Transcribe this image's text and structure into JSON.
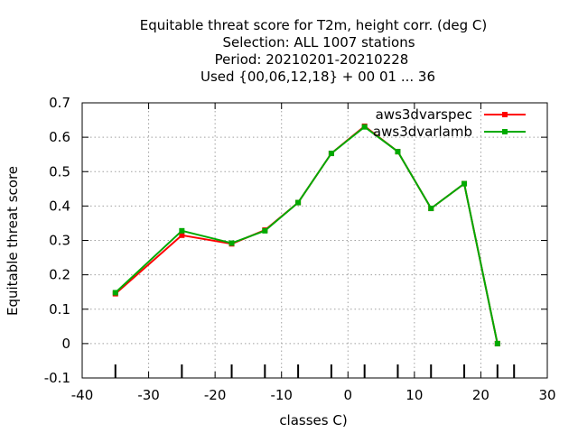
{
  "chart_data": {
    "type": "line",
    "title_lines": [
      "Equitable threat score  for T2m, height corr. (deg C)",
      "Selection: ALL   1007 stations",
      "Period: 20210201-20210228",
      "Used {00,06,12,18} + 00 01 ... 36"
    ],
    "xlabel": "classes C)",
    "ylabel": "Equitable threat score",
    "xlim": [
      -40,
      30
    ],
    "ylim": [
      -0.1,
      0.7
    ],
    "xticks": [
      -40,
      -30,
      -20,
      -10,
      0,
      10,
      20,
      30
    ],
    "yticks": [
      -0.1,
      0,
      0.1,
      0.2,
      0.3,
      0.4,
      0.5,
      0.6,
      0.7
    ],
    "xtick_labels": [
      "-40",
      "-30",
      "-20",
      "-10",
      "0",
      "10",
      "20",
      "30"
    ],
    "ytick_labels": [
      "-0.1",
      "0",
      "0.1",
      "0.2",
      "0.3",
      "0.4",
      "0.5",
      "0.6",
      "0.7"
    ],
    "class_marks": [
      -35,
      -25,
      -17.5,
      -12.5,
      -7.5,
      -2.5,
      2.5,
      7.5,
      12.5,
      17.5,
      22.5,
      25
    ],
    "grid": true,
    "legend_position": "top-right",
    "series": [
      {
        "name": "aws3dvarspec",
        "color": "#ff0000",
        "x": [
          -35,
          -25,
          -17.5,
          -12.5,
          -7.5,
          -2.5,
          2.5,
          7.5,
          12.5,
          17.5,
          22.5
        ],
        "y": [
          0.145,
          0.315,
          0.29,
          0.33,
          0.41,
          0.553,
          0.632,
          0.558,
          0.393,
          0.465,
          0.0
        ]
      },
      {
        "name": "aws3dvarlamb",
        "color": "#00aa00",
        "x": [
          -35,
          -25,
          -17.5,
          -12.5,
          -7.5,
          -2.5,
          2.5,
          7.5,
          12.5,
          17.5,
          22.5
        ],
        "y": [
          0.148,
          0.328,
          0.292,
          0.328,
          0.41,
          0.553,
          0.63,
          0.558,
          0.393,
          0.465,
          0.0
        ]
      }
    ]
  }
}
